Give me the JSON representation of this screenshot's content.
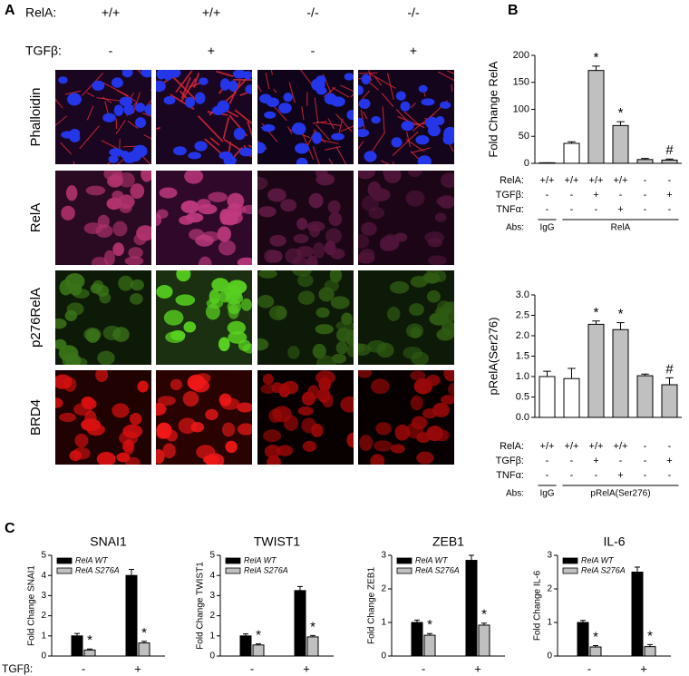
{
  "figure": {
    "panel_labels": [
      "A",
      "B",
      "C"
    ],
    "panel_a": {
      "genotype_label": "RelA:",
      "genotypes": [
        "+/+",
        "+/+",
        "-/-",
        "-/-"
      ],
      "treatment_label": "TGFβ:",
      "treatments": [
        "-",
        "+",
        "-",
        "+"
      ],
      "stains": [
        "Phalloidin",
        "RelA",
        "p276RelA",
        "BRD4"
      ]
    }
  },
  "chart_data": [
    {
      "type": "bar",
      "ylabel": "Fold Change RelA",
      "ylim": [
        0,
        200
      ],
      "yticks": [
        0,
        50,
        100,
        150,
        200
      ],
      "values": [
        1,
        37,
        172,
        70,
        7,
        6
      ],
      "errors": [
        0,
        3,
        8,
        7,
        2,
        2
      ],
      "colors": [
        "#ffffff",
        "#ffffff",
        "#c0c0c0",
        "#c0c0c0",
        "#c0c0c0",
        "#c0c0c0"
      ],
      "markers": [
        null,
        null,
        "*",
        "*",
        null,
        "#"
      ],
      "conditions": [
        {
          "label": "RelA:",
          "values": [
            "+/+",
            "+/+",
            "+/+",
            "+/+",
            "-",
            "-"
          ]
        },
        {
          "label": "TGFβ:",
          "values": [
            "-",
            "-",
            "+",
            "-",
            "-",
            "+"
          ]
        },
        {
          "label": "TNFα:",
          "values": [
            "-",
            "-",
            "-",
            "+",
            "-",
            "-"
          ]
        }
      ],
      "abs": {
        "label": "Abs:",
        "groups": [
          "IgG",
          "RelA"
        ]
      }
    },
    {
      "type": "bar",
      "ylabel": "pRelA(Ser276)",
      "ylim": [
        0,
        3
      ],
      "yticks": [
        {
          "value": 0,
          "label": "0.0"
        },
        0.5,
        {
          "value": 1,
          "label": "1.0"
        },
        1.5,
        {
          "value": 2,
          "label": "2.0"
        },
        2.5,
        {
          "value": 3,
          "label": "3.0"
        }
      ],
      "values": [
        1.0,
        0.95,
        2.28,
        2.15,
        1.02,
        0.8
      ],
      "errors": [
        0.13,
        0.25,
        0.08,
        0.17,
        0.04,
        0.17
      ],
      "colors": [
        "#ffffff",
        "#ffffff",
        "#c0c0c0",
        "#c0c0c0",
        "#c0c0c0",
        "#c0c0c0"
      ],
      "markers": [
        null,
        null,
        "*",
        "*",
        null,
        "#"
      ],
      "conditions": [
        {
          "label": "RelA:",
          "values": [
            "+/+",
            "+/+",
            "+/+",
            "+/+",
            "-",
            "-"
          ]
        },
        {
          "label": "TGFβ:",
          "values": [
            "-",
            "-",
            "+",
            "-",
            "-",
            "+"
          ]
        },
        {
          "label": "TNFα:",
          "values": [
            "-",
            "-",
            "-",
            "+",
            "-",
            "-"
          ]
        }
      ],
      "abs": {
        "label": "Abs:",
        "groups": [
          "IgG",
          "pRelA(Ser276)"
        ]
      }
    },
    {
      "type": "grouped_bar",
      "title": "SNAI1",
      "ylabel": "Fold Change SNAI1",
      "xlabel": "TGFβ:",
      "categories": [
        "-",
        "+"
      ],
      "ylim": [
        0,
        5
      ],
      "yticks": [
        0,
        1,
        2,
        3,
        4,
        5
      ],
      "series": [
        {
          "name": "RelA WT",
          "color": "#000000",
          "values": [
            1.0,
            4.0
          ],
          "errors": [
            0.12,
            0.3
          ]
        },
        {
          "name": "RelA S276A",
          "color": "#c0c0c0",
          "values": [
            0.3,
            0.65
          ],
          "errors": [
            0.05,
            0.08
          ],
          "markers": [
            "*",
            "*"
          ]
        }
      ]
    },
    {
      "type": "grouped_bar",
      "title": "TWIST1",
      "ylabel": "Fold Change TWIST1",
      "categories": [
        "-",
        "+"
      ],
      "ylim": [
        0,
        5
      ],
      "yticks": [
        0,
        1,
        2,
        3,
        4,
        5
      ],
      "series": [
        {
          "name": "RelA WT",
          "color": "#000000",
          "values": [
            1.0,
            3.25
          ],
          "errors": [
            0.1,
            0.2
          ]
        },
        {
          "name": "RelA S276A",
          "color": "#c0c0c0",
          "values": [
            0.55,
            0.95
          ],
          "errors": [
            0.05,
            0.07
          ],
          "markers": [
            "*",
            "*"
          ]
        }
      ]
    },
    {
      "type": "grouped_bar",
      "title": "ZEB1",
      "ylabel": "Fold Change ZEB1",
      "categories": [
        "-",
        "+"
      ],
      "ylim": [
        0,
        3
      ],
      "yticks": [
        0,
        1,
        2,
        3
      ],
      "series": [
        {
          "name": "RelA WT",
          "color": "#000000",
          "values": [
            1.0,
            2.85
          ],
          "errors": [
            0.07,
            0.15
          ]
        },
        {
          "name": "RelA S276A",
          "color": "#c0c0c0",
          "values": [
            0.62,
            0.92
          ],
          "errors": [
            0.05,
            0.06
          ],
          "markers": [
            "*",
            "*"
          ]
        }
      ]
    },
    {
      "type": "grouped_bar",
      "title": "IL-6",
      "ylabel": "Fold Change IL-6",
      "categories": [
        "-",
        "+"
      ],
      "ylim": [
        0,
        3
      ],
      "yticks": [
        0,
        1,
        2,
        3
      ],
      "series": [
        {
          "name": "RelA WT",
          "color": "#000000",
          "values": [
            1.0,
            2.5
          ],
          "errors": [
            0.06,
            0.15
          ]
        },
        {
          "name": "RelA S276A",
          "color": "#c0c0c0",
          "values": [
            0.27,
            0.28
          ],
          "errors": [
            0.04,
            0.06
          ],
          "markers": [
            "*",
            "*"
          ]
        }
      ]
    }
  ]
}
